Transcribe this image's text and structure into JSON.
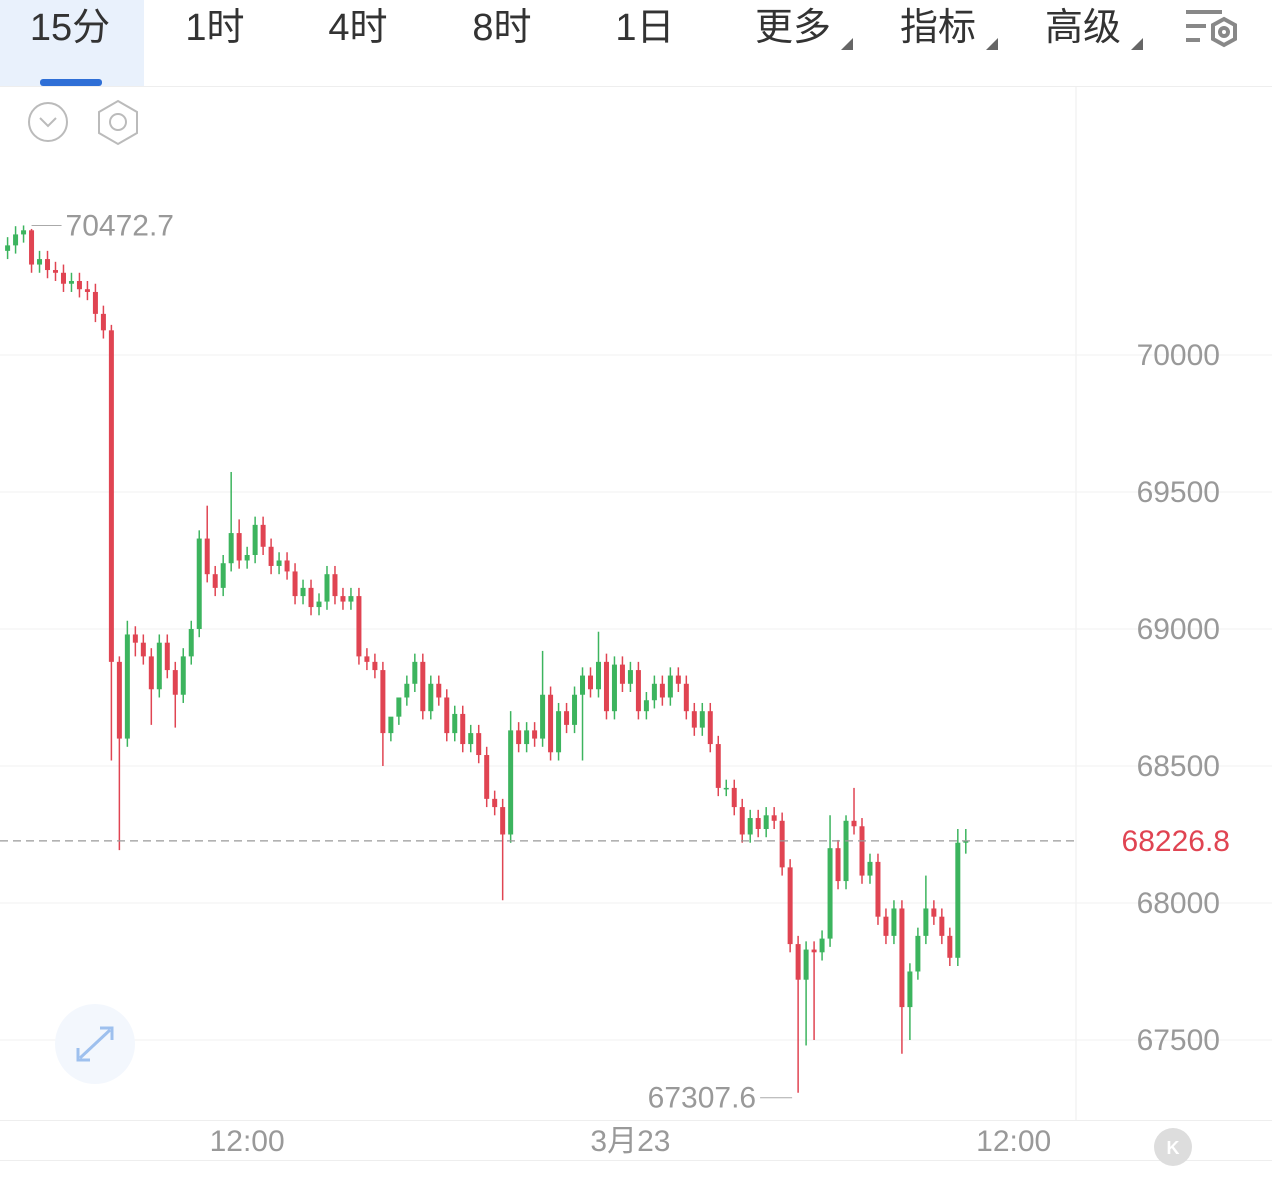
{
  "tabs": [
    "15分",
    "1时",
    "4时",
    "8时",
    "1日",
    "更多",
    "指标",
    "高级"
  ],
  "chart_data": {
    "type": "candlestick",
    "up_color": "#3cb45e",
    "down_color": "#e04452",
    "open": [
      70380,
      70400,
      70440,
      70455,
      70330,
      70350,
      70310,
      70300,
      70260,
      70270,
      70240,
      70230,
      70150,
      70090,
      68880,
      68600,
      68980,
      68950,
      68900,
      68780,
      68950,
      68850,
      68760,
      68900,
      69000,
      69330,
      69200,
      69150,
      69240,
      69350,
      69250,
      69270,
      69380,
      69300,
      69230,
      69250,
      69210,
      69120,
      69150,
      69080,
      69100,
      69200,
      69120,
      69100,
      69120,
      68900,
      68880,
      68850,
      68620,
      68680,
      68750,
      68800,
      68880,
      68700,
      68800,
      68750,
      68620,
      68690,
      68580,
      68620,
      68540,
      68380,
      68350,
      68250,
      68630,
      68580,
      68630,
      68600,
      68760,
      68550,
      68700,
      68650,
      68760,
      68830,
      68780,
      68880,
      68700,
      68870,
      68800,
      68850,
      68700,
      68740,
      68800,
      68750,
      68830,
      68800,
      68700,
      68640,
      68700,
      68580,
      68420,
      68420,
      68350,
      68250,
      68310,
      68270,
      68320,
      68300,
      68130,
      67850,
      67720,
      67830,
      67820,
      67870,
      68200,
      68080,
      68300,
      68280,
      68100,
      68150,
      67950,
      67880,
      67980,
      67620,
      67750,
      67880,
      67980,
      67950,
      67880,
      67800,
      68220
    ],
    "high": [
      70430,
      70470,
      70472.7,
      70460,
      70380,
      70380,
      70340,
      70330,
      70300,
      70300,
      70270,
      70260,
      70180,
      70110,
      68900,
      69030,
      69010,
      68980,
      68930,
      68980,
      68980,
      68880,
      68930,
      69030,
      69360,
      69450,
      69230,
      69270,
      69573,
      69400,
      69300,
      69410,
      69410,
      69330,
      69280,
      69280,
      69240,
      69180,
      69180,
      69130,
      69230,
      69230,
      69150,
      69150,
      69150,
      68930,
      68910,
      68880,
      68650,
      68720,
      68830,
      68910,
      68910,
      68830,
      68830,
      68780,
      68720,
      68720,
      68650,
      68650,
      68570,
      68410,
      68380,
      68700,
      68660,
      68660,
      68660,
      68920,
      68790,
      68730,
      68730,
      68790,
      68860,
      68860,
      68990,
      68910,
      68900,
      68900,
      68880,
      68880,
      68770,
      68830,
      68830,
      68860,
      68860,
      68830,
      68730,
      68730,
      68730,
      68610,
      68450,
      68450,
      68380,
      68340,
      68340,
      68350,
      68350,
      68330,
      68160,
      67880,
      67860,
      67860,
      67900,
      68320,
      68230,
      68320,
      68420,
      68310,
      68180,
      68180,
      67980,
      68010,
      68010,
      67780,
      67910,
      68100,
      68010,
      67980,
      67910,
      68270,
      68270
    ],
    "low": [
      70350,
      70370,
      70410,
      70300,
      70300,
      70280,
      70270,
      70230,
      70230,
      70210,
      70200,
      70120,
      70060,
      68520,
      68193,
      68570,
      68900,
      68870,
      68650,
      68750,
      68820,
      68640,
      68730,
      68870,
      68970,
      69170,
      69120,
      69120,
      69210,
      69220,
      69220,
      69240,
      69270,
      69200,
      69200,
      69180,
      69090,
      69090,
      69050,
      69050,
      69070,
      69090,
      69070,
      69070,
      68870,
      68850,
      68820,
      68500,
      68590,
      68650,
      68720,
      68770,
      68670,
      68670,
      68720,
      68590,
      68590,
      68550,
      68550,
      68510,
      68350,
      68320,
      68010,
      68220,
      68550,
      68550,
      68570,
      68570,
      68520,
      68520,
      68620,
      68620,
      68520,
      68750,
      68750,
      68670,
      68670,
      68770,
      68770,
      68670,
      68670,
      68710,
      68720,
      68720,
      68770,
      68670,
      68610,
      68610,
      68550,
      68390,
      68390,
      68320,
      68220,
      68220,
      68240,
      68240,
      68270,
      68100,
      67820,
      67307.6,
      67480,
      67500,
      67790,
      67840,
      68050,
      68050,
      68250,
      68070,
      68070,
      67920,
      67850,
      67850,
      67450,
      67500,
      67720,
      67850,
      67920,
      67850,
      67770,
      67770,
      68180
    ],
    "close": [
      70400,
      70440,
      70455,
      70330,
      70350,
      70310,
      70300,
      70260,
      70270,
      70240,
      70230,
      70150,
      70090,
      68880,
      68600,
      68980,
      68950,
      68900,
      68780,
      68950,
      68850,
      68760,
      68900,
      69000,
      69330,
      69200,
      69150,
      69240,
      69350,
      69250,
      69270,
      69380,
      69300,
      69230,
      69250,
      69210,
      69120,
      69150,
      69080,
      69100,
      69200,
      69120,
      69100,
      69120,
      68900,
      68880,
      68850,
      68620,
      68680,
      68750,
      68800,
      68880,
      68700,
      68800,
      68750,
      68620,
      68690,
      68580,
      68620,
      68540,
      68380,
      68350,
      68250,
      68630,
      68580,
      68630,
      68600,
      68760,
      68550,
      68700,
      68650,
      68760,
      68830,
      68780,
      68880,
      68700,
      68870,
      68800,
      68850,
      68700,
      68740,
      68800,
      68750,
      68830,
      68800,
      68700,
      68640,
      68700,
      68580,
      68420,
      68420,
      68350,
      68250,
      68310,
      68270,
      68320,
      68300,
      68130,
      67850,
      67720,
      67830,
      67820,
      67870,
      68200,
      68080,
      68300,
      68280,
      68100,
      68150,
      67950,
      67880,
      67980,
      67620,
      67750,
      67880,
      67980,
      67950,
      67880,
      67800,
      68220,
      68226.8
    ],
    "ylim": [
      67208,
      70978
    ],
    "yticks": [
      67500,
      68000,
      68500,
      69000,
      69500,
      70000
    ],
    "xlim": [
      -0.95,
      133.8
    ],
    "xticks": [
      {
        "value": 30,
        "label": "12:00"
      },
      {
        "value": 78,
        "label": "3月23"
      },
      {
        "value": 126,
        "label": "12:00"
      }
    ],
    "grid": true
  }
}
